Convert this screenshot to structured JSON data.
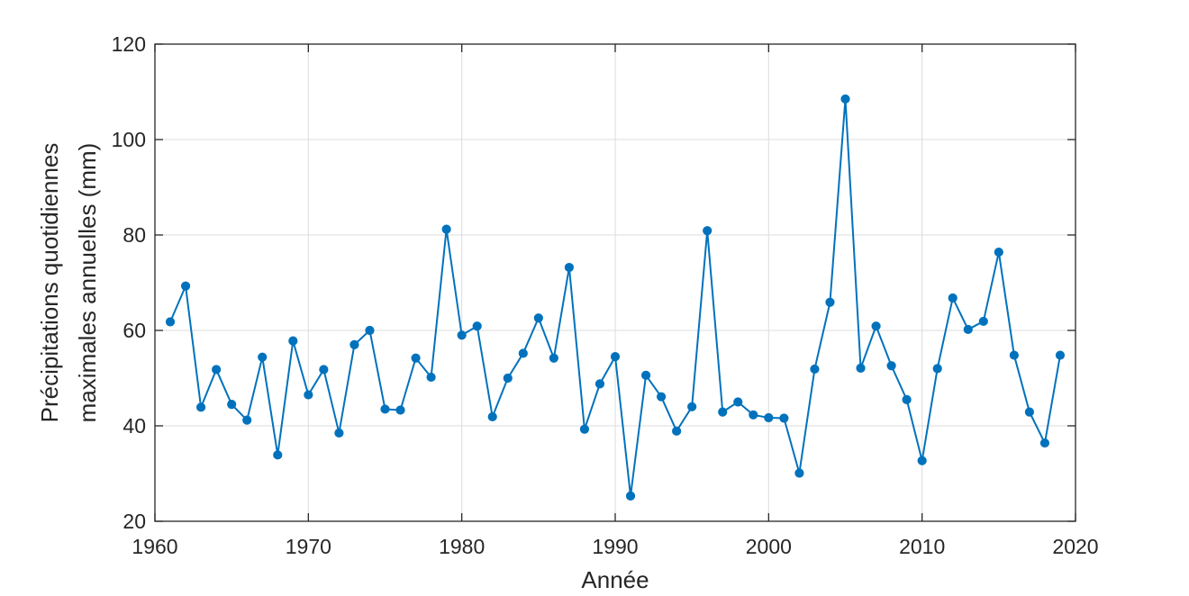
{
  "chart_data": {
    "type": "line",
    "title": "",
    "xlabel": "Année",
    "ylabel_lines": [
      "Précipitations quotidiennes",
      "maximales annuelles (mm)"
    ],
    "xlim": [
      1960,
      2020
    ],
    "ylim": [
      20,
      120
    ],
    "xticks": [
      1960,
      1970,
      1980,
      1990,
      2000,
      2010,
      2020
    ],
    "yticks": [
      20,
      40,
      60,
      80,
      100,
      120
    ],
    "grid": true,
    "legend": "none",
    "series": [
      {
        "color": "#0072BD",
        "marker": "circle",
        "x": [
          1961,
          1962,
          1963,
          1964,
          1965,
          1966,
          1967,
          1968,
          1969,
          1970,
          1971,
          1972,
          1973,
          1974,
          1975,
          1976,
          1977,
          1978,
          1979,
          1980,
          1981,
          1982,
          1983,
          1984,
          1985,
          1986,
          1987,
          1988,
          1989,
          1990,
          1991,
          1992,
          1993,
          1994,
          1995,
          1996,
          1997,
          1998,
          1999,
          2000,
          2001,
          2002,
          2003,
          2004,
          2005,
          2006,
          2007,
          2008,
          2009,
          2010,
          2011,
          2012,
          2013,
          2014,
          2015,
          2016,
          2017,
          2018,
          2019
        ],
        "y": [
          61.8,
          69.3,
          43.9,
          51.8,
          44.5,
          41.2,
          54.4,
          33.9,
          57.8,
          46.5,
          51.8,
          38.5,
          57.0,
          60.0,
          43.5,
          43.3,
          54.2,
          50.2,
          81.2,
          59.0,
          60.9,
          41.9,
          50.0,
          55.2,
          62.6,
          54.2,
          73.2,
          39.3,
          48.8,
          54.5,
          25.3,
          50.6,
          46.1,
          38.9,
          44.0,
          80.9,
          42.9,
          45.0,
          42.3,
          41.7,
          41.6,
          30.1,
          51.9,
          65.9,
          108.5,
          52.1,
          60.9,
          52.6,
          45.5,
          32.7,
          52.0,
          66.8,
          60.2,
          61.9,
          76.4,
          54.8,
          42.9,
          36.4,
          54.8
        ]
      }
    ]
  }
}
